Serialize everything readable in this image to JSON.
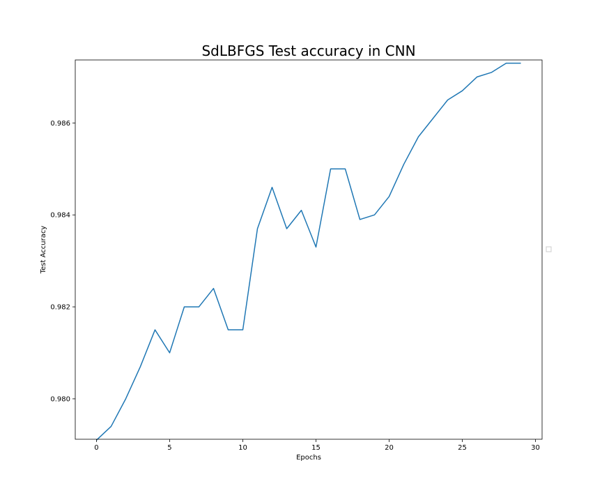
{
  "chart_data": {
    "type": "line",
    "title": "SdLBFGS Test accuracy in CNN",
    "xlabel": "Epochs",
    "ylabel": "Test Accuracy",
    "xlim": [
      -1.45,
      30.45
    ],
    "ylim": [
      0.97912,
      0.98737
    ],
    "x_ticks": [
      0,
      5,
      10,
      15,
      20,
      25,
      30
    ],
    "y_ticks": [
      0.98,
      0.982,
      0.984,
      0.986
    ],
    "y_tick_labels": [
      "0.980",
      "0.982",
      "0.984",
      "0.986"
    ],
    "grid": false,
    "legend": "center-right, empty",
    "line_color": "#1f77b4",
    "series": [
      {
        "x": [
          0,
          1,
          2,
          3,
          4,
          5,
          6,
          7,
          8,
          9,
          10,
          11,
          12,
          13,
          14,
          15,
          16,
          17,
          18,
          19,
          20,
          21,
          22,
          23,
          24,
          25,
          26,
          27,
          28,
          29
        ],
        "values": [
          0.9791,
          0.9794,
          0.98,
          0.9807,
          0.9815,
          0.981,
          0.982,
          0.982,
          0.9824,
          0.9815,
          0.9815,
          0.9837,
          0.9846,
          0.9837,
          0.9841,
          0.9833,
          0.985,
          0.985,
          0.9839,
          0.984,
          0.9844,
          0.9851,
          0.9857,
          0.9861,
          0.9865,
          0.9867,
          0.987,
          0.9871,
          0.9873,
          0.9873
        ]
      }
    ]
  }
}
